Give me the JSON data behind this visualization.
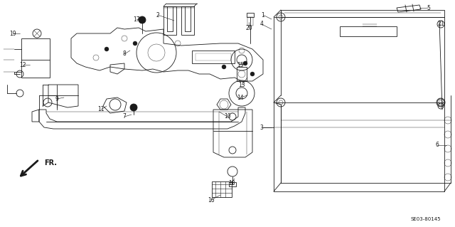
{
  "background_color": "#ffffff",
  "line_color": "#1a1a1a",
  "fig_width": 6.4,
  "fig_height": 3.19,
  "dpi": 100,
  "watermark": "SE03-80145",
  "fr_label": "FR."
}
